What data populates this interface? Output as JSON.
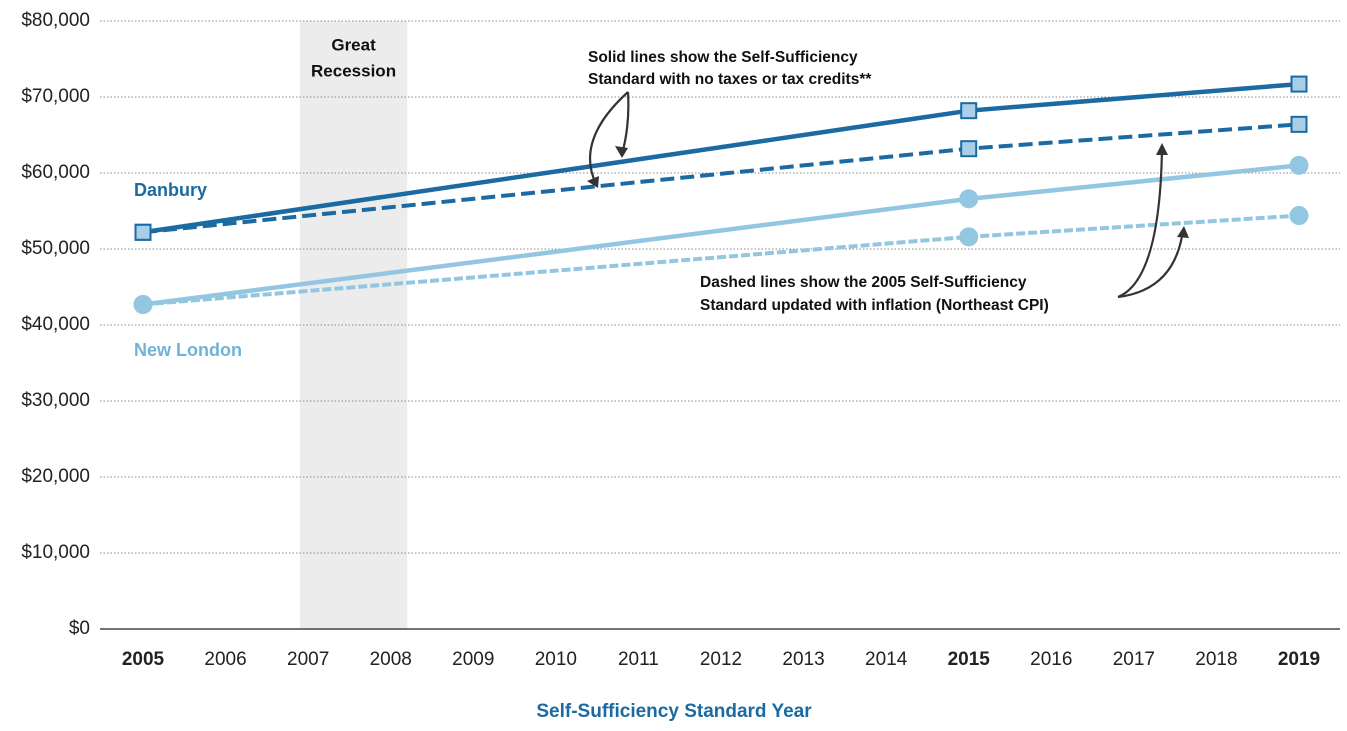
{
  "chart_data": {
    "type": "line",
    "x_label": "Self-Sufficiency Standard Year",
    "x": [
      2005,
      2015,
      2019
    ],
    "xlim": [
      2005,
      2019
    ],
    "xticks": [
      2005,
      2006,
      2007,
      2008,
      2009,
      2010,
      2011,
      2012,
      2013,
      2014,
      2015,
      2016,
      2017,
      2018,
      2019
    ],
    "ylim": [
      0,
      80000
    ],
    "yticks": [
      {
        "value": 0,
        "label": "$0"
      },
      {
        "value": 10000,
        "label": "$10,000"
      },
      {
        "value": 20000,
        "label": "$20,000"
      },
      {
        "value": 30000,
        "label": "$30,000"
      },
      {
        "value": 40000,
        "label": "$40,000"
      },
      {
        "value": 50000,
        "label": "$50,000"
      },
      {
        "value": 60000,
        "label": "$60,000"
      },
      {
        "value": 70000,
        "label": "$70,000"
      },
      {
        "value": 80000,
        "label": "$80,000"
      }
    ],
    "grid": true,
    "series": [
      {
        "name": "Danbury",
        "color": "#1b6aa2",
        "marker": "square",
        "marker_fill": "#a9cfe8",
        "values": [
          52200,
          68200,
          71700
        ],
        "dashed_values": [
          52200,
          63200,
          66400
        ]
      },
      {
        "name": "New London",
        "color": "#93c6e1",
        "marker": "circle",
        "marker_fill": "#93c6e1",
        "values": [
          42700,
          56600,
          61000
        ],
        "dashed_values": [
          42700,
          51600,
          54400
        ]
      }
    ],
    "shade": {
      "label": [
        "Great",
        "Recession"
      ],
      "range": [
        2006.9,
        2008.2
      ],
      "color": "#ececec"
    },
    "annotations": [
      [
        "Solid lines show the Self-Sufficiency",
        "Standard with no taxes or tax credits**"
      ],
      [
        "Dashed lines show the 2005 Self-Sufficiency",
        "Standard updated with inflation (Northeast CPI)"
      ]
    ]
  }
}
